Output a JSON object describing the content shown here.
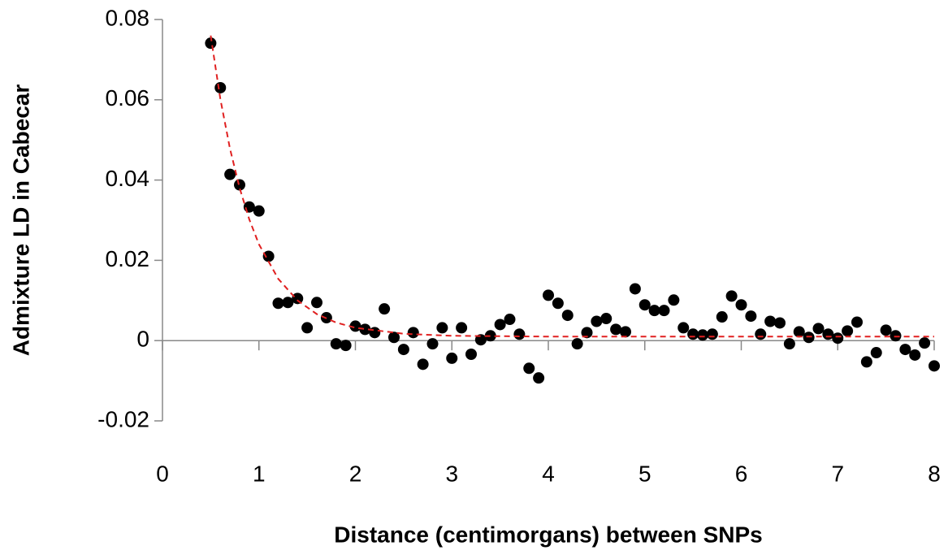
{
  "chart_data": {
    "type": "scatter",
    "x_label": "Distance (centimorgans) between SNPs",
    "y_label": "Admixture LD in Cabecar",
    "xlim": [
      0,
      8
    ],
    "xticks": [
      0,
      1,
      2,
      3,
      4,
      5,
      6,
      7,
      8
    ],
    "ylim": [
      -0.02,
      0.08
    ],
    "yticks": [
      -0.02,
      0,
      0.02,
      0.04,
      0.06,
      0.08
    ],
    "series": [
      {
        "color": "#000000",
        "x": [
          0.5,
          0.6,
          0.7,
          0.8,
          0.9,
          1.0,
          1.1,
          1.2,
          1.3,
          1.4,
          1.5,
          1.6,
          1.7,
          1.8,
          1.9,
          2.0,
          2.1,
          2.2,
          2.3,
          2.4,
          2.5,
          2.6,
          2.7,
          2.8,
          2.9,
          3.0,
          3.1,
          3.2,
          3.3,
          3.4,
          3.5,
          3.6,
          3.7,
          3.8,
          3.9,
          4.0,
          4.1,
          4.2,
          4.3,
          4.4,
          4.5,
          4.6,
          4.7,
          4.8,
          4.9,
          5.0,
          5.1,
          5.2,
          5.3,
          5.4,
          5.5,
          5.6,
          5.7,
          5.8,
          5.9,
          6.0,
          6.1,
          6.2,
          6.3,
          6.4,
          6.5,
          6.6,
          6.7,
          6.8,
          6.9,
          7.0,
          7.1,
          7.2,
          7.3,
          7.4,
          7.5,
          7.6,
          7.7,
          7.8,
          7.9,
          8.0
        ],
        "values": [
          0.0741,
          0.063,
          0.0414,
          0.0388,
          0.0333,
          0.0323,
          0.021,
          0.0093,
          0.0095,
          0.0105,
          0.0032,
          0.0095,
          0.0057,
          -0.0008,
          -0.0012,
          0.0036,
          0.0028,
          0.002,
          0.0079,
          0.0008,
          -0.0022,
          0.002,
          -0.0059,
          -0.0008,
          0.0032,
          -0.0044,
          0.0032,
          -0.0034,
          0.0002,
          0.0012,
          0.004,
          0.0053,
          0.0016,
          -0.0069,
          -0.0093,
          0.0113,
          0.0093,
          0.0063,
          -0.0008,
          0.002,
          0.0048,
          0.0055,
          0.0028,
          0.0022,
          0.0129,
          0.0089,
          0.0075,
          0.0075,
          0.0101,
          0.0032,
          0.0016,
          0.0014,
          0.0016,
          0.0059,
          0.0111,
          0.0089,
          0.0061,
          0.0016,
          0.0048,
          0.0044,
          -0.0008,
          0.0022,
          0.0008,
          0.003,
          0.0016,
          0.0006,
          0.0024,
          0.0046,
          -0.0053,
          -0.003,
          0.0026,
          0.0012,
          -0.0022,
          -0.0036,
          -0.0006,
          -0.0063
        ]
      },
      {
        "type": "line",
        "color": "#e02020",
        "dashed": true,
        "x": [
          0.5,
          0.6,
          0.7,
          0.8,
          0.9,
          1.0,
          1.2,
          1.4,
          1.6,
          1.8,
          2.0,
          2.5,
          3,
          4,
          5,
          6,
          7,
          8
        ],
        "values": [
          0.076,
          0.0602,
          0.0478,
          0.038,
          0.0302,
          0.024,
          0.0154,
          0.01,
          0.0066,
          0.0045,
          0.0032,
          0.0017,
          0.0012,
          0.001,
          0.001,
          0.001,
          0.001,
          0.001
        ]
      }
    ]
  }
}
